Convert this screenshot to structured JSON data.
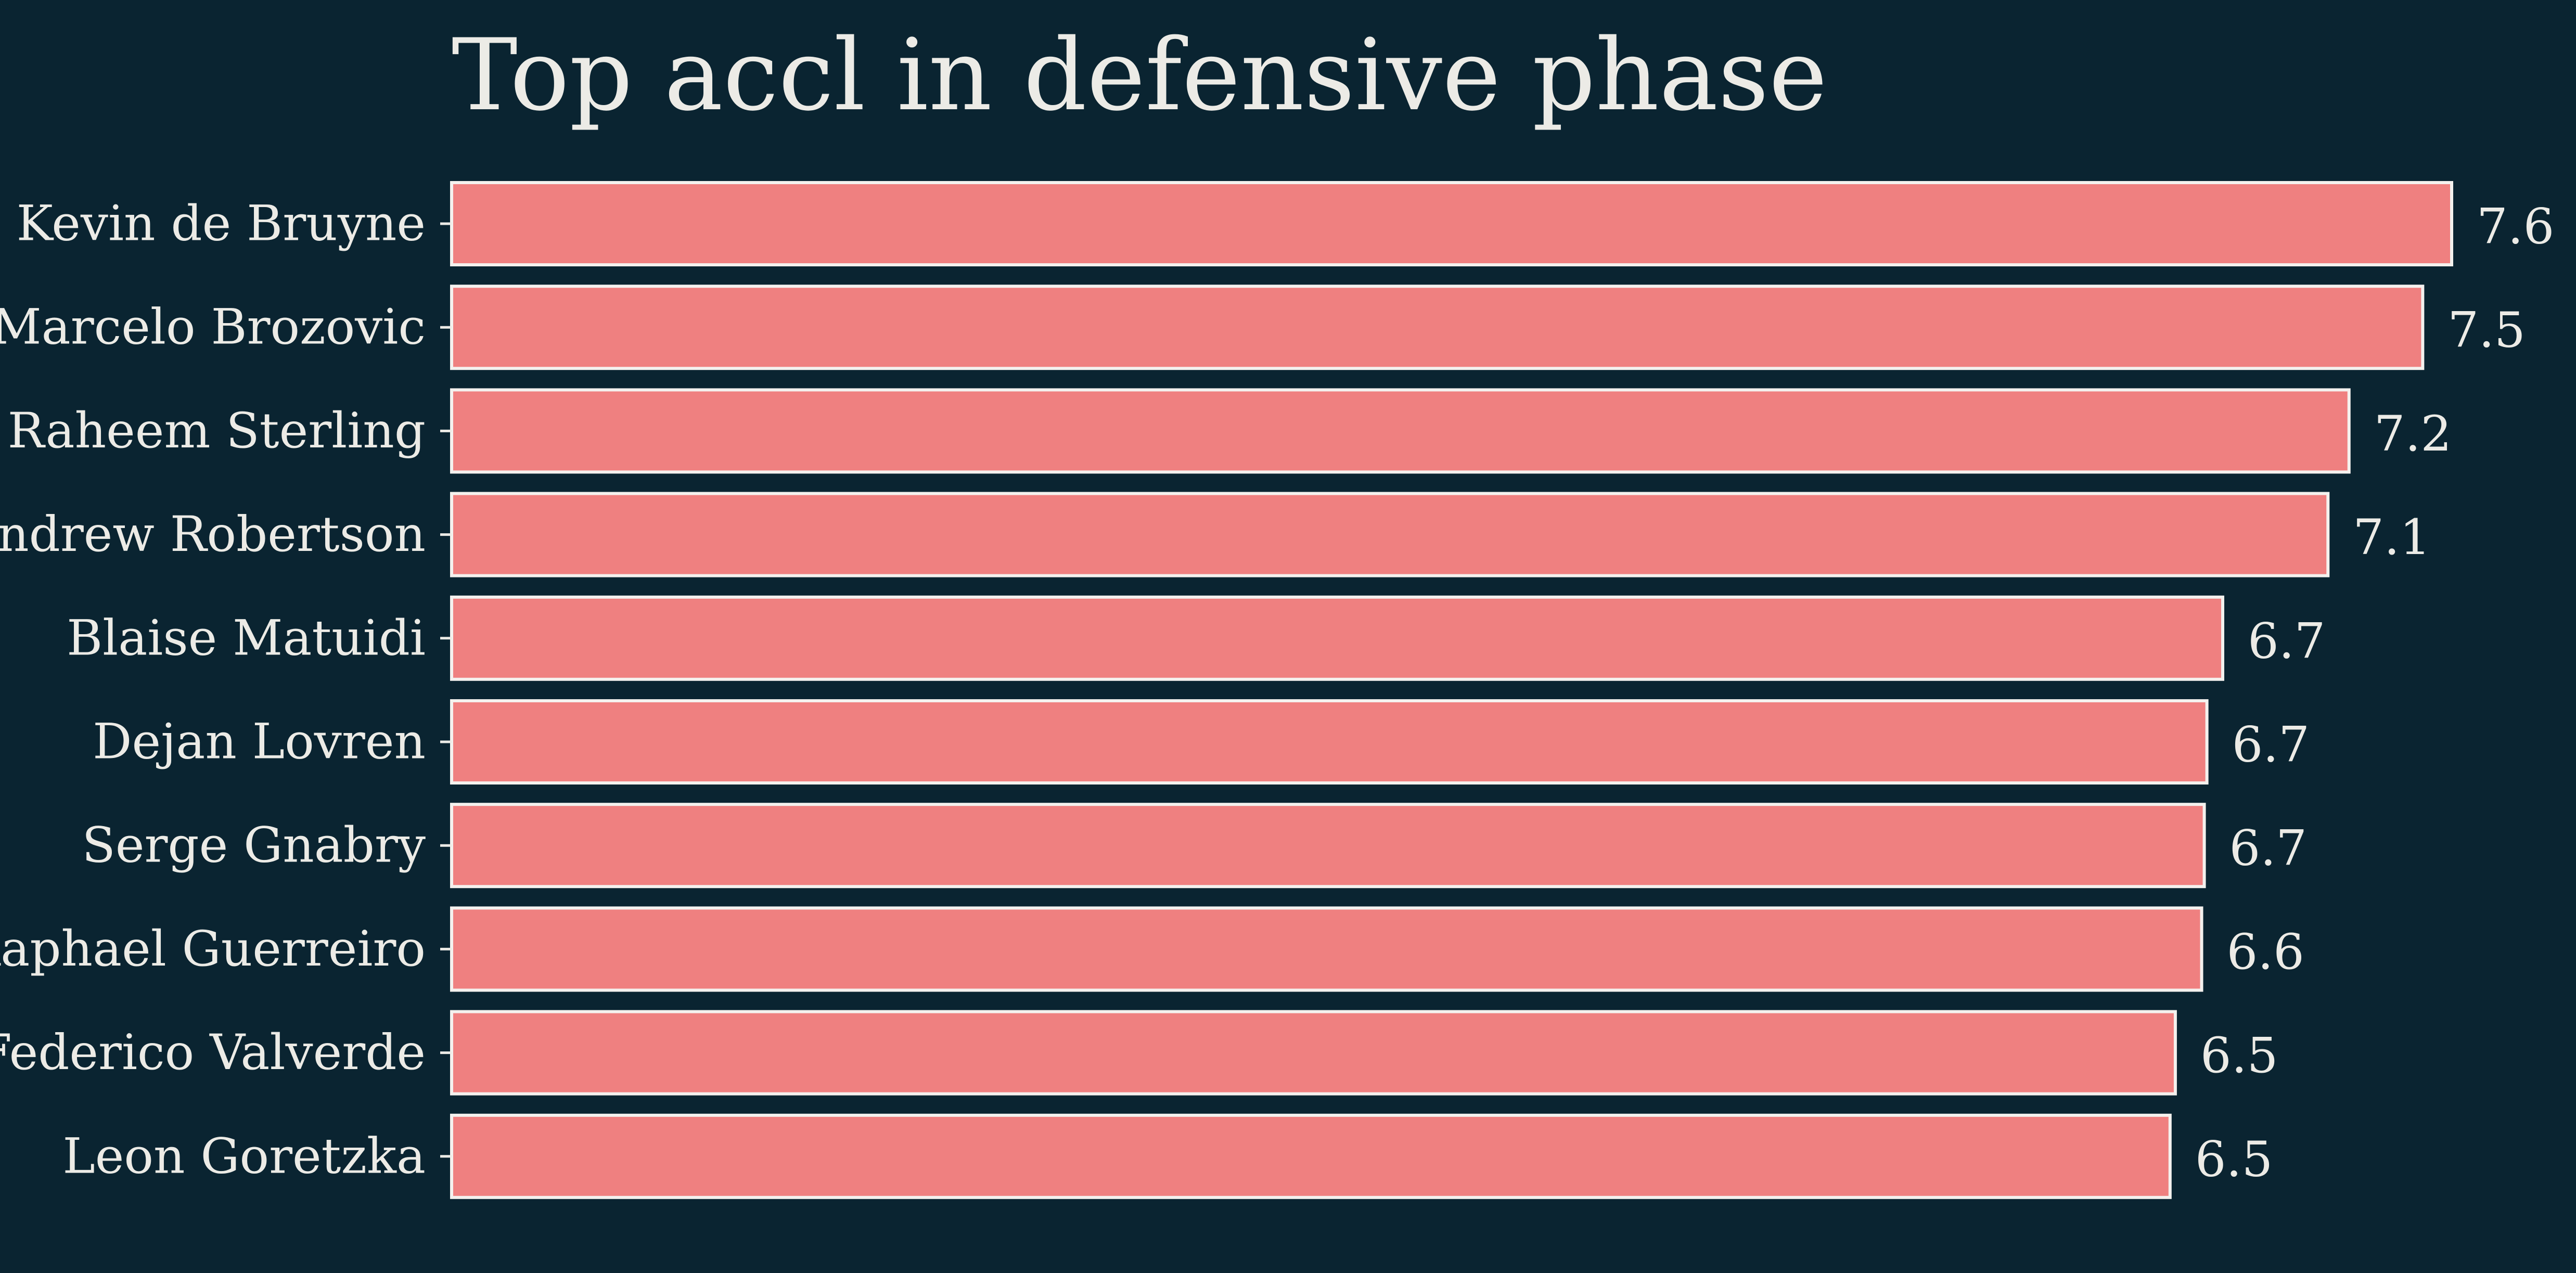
{
  "colors": {
    "background": "#0a2431",
    "bar_fill": "#ef8080",
    "bar_edge": "#f4f1ee",
    "text": "#ecebe6"
  },
  "chart_data": {
    "type": "bar",
    "orientation": "horizontal",
    "title": "Top accl in defensive phase",
    "xlabel": "",
    "ylabel": "",
    "categories": [
      "Kevin de Bruyne",
      "Marcelo Brozovic",
      "Raheem Sterling",
      "Andrew Robertson",
      "Blaise Matuidi",
      "Dejan Lovren",
      "Serge Gnabry",
      "Raphael Guerreiro",
      "Federico Valverde",
      "Leon Goretzka"
    ],
    "values": [
      7.6,
      7.49,
      7.21,
      7.13,
      6.73,
      6.67,
      6.66,
      6.65,
      6.55,
      6.53
    ],
    "value_labels": [
      "7.6",
      "7.5",
      "7.2",
      "7.1",
      "6.7",
      "6.7",
      "6.7",
      "6.6",
      "6.5",
      "6.5"
    ],
    "xlim": [
      0,
      7.6
    ],
    "grid": false,
    "legend": "none",
    "x_axis_visible": false
  }
}
